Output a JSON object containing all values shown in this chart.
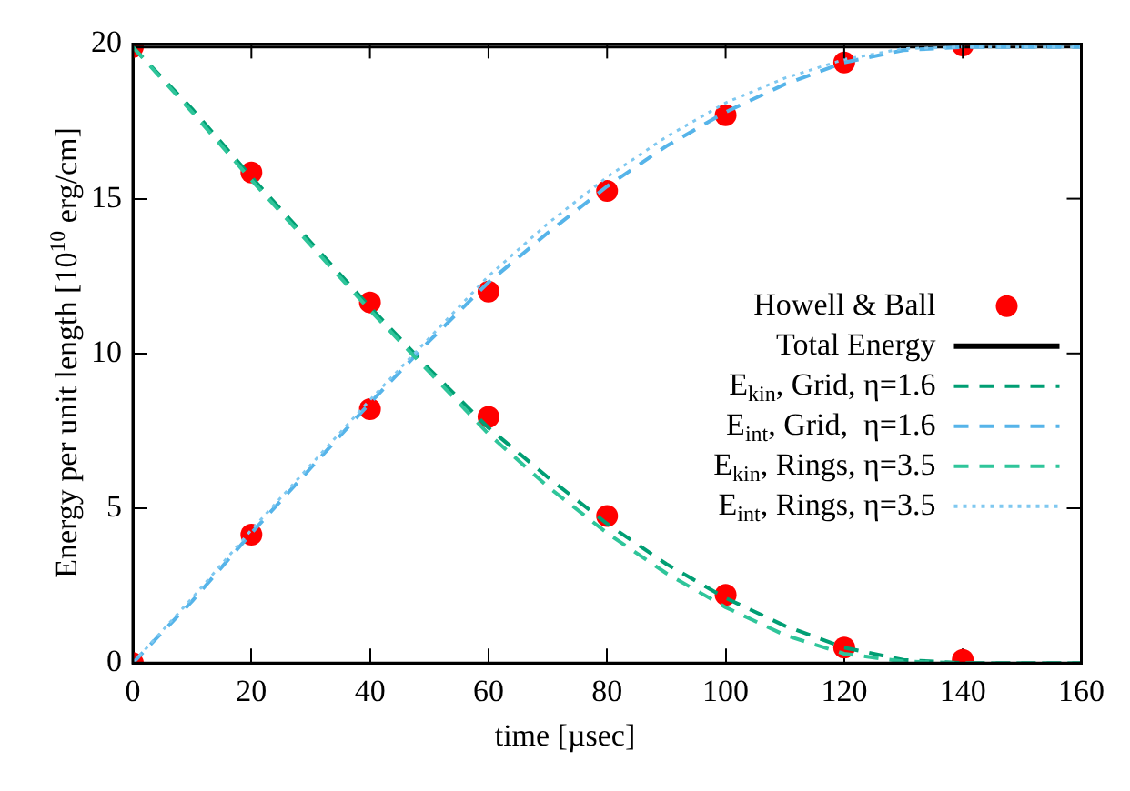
{
  "chart_data": {
    "type": "line",
    "xlabel": "time [µsec]",
    "ylabel": "Energy per unit length [10$^{10}$ erg/cm]",
    "xlim": [
      0,
      160
    ],
    "xticks": [
      0,
      20,
      40,
      60,
      80,
      100,
      120,
      140,
      160
    ],
    "ylim": [
      0,
      20
    ],
    "yticks": [
      0,
      5,
      10,
      15,
      20
    ],
    "grid": false,
    "legend": "right",
    "series": [
      {
        "name": "Howell & Ball",
        "type": "scatter",
        "marker": "circle",
        "color": "#ff0000",
        "x": [
          0,
          0,
          20,
          20,
          40,
          40,
          60,
          60,
          80,
          80,
          100,
          100,
          120,
          120,
          140,
          140
        ],
        "values": [
          19.9,
          0,
          15.85,
          4.15,
          11.65,
          8.2,
          12.0,
          7.95,
          15.25,
          4.75,
          17.7,
          2.2,
          19.4,
          0.5,
          19.95,
          0.1
        ]
      },
      {
        "name": "Total Energy",
        "color": "#000000",
        "line_style": "solid",
        "x": [
          0,
          160
        ],
        "values": [
          19.9,
          19.9
        ]
      },
      {
        "name": "E$_{kin}$, Grid, η=1.6",
        "color": "#009e73",
        "line_style": "dashed",
        "x": [
          0,
          10,
          20,
          30,
          40,
          50,
          60,
          70,
          80,
          90,
          100,
          110,
          120,
          130,
          140,
          150,
          160
        ],
        "values": [
          19.9,
          17.9,
          15.7,
          13.6,
          11.5,
          9.5,
          7.6,
          6.0,
          4.5,
          3.2,
          2.1,
          1.2,
          0.5,
          0.1,
          0,
          0,
          0
        ]
      },
      {
        "name": "E$_{int}$, Grid,  η=1.6",
        "color": "#56b4e9",
        "line_style": "dashed",
        "x": [
          0,
          10,
          20,
          30,
          40,
          50,
          60,
          70,
          80,
          90,
          100,
          110,
          120,
          130,
          140,
          150,
          160
        ],
        "values": [
          0,
          2.0,
          4.2,
          6.3,
          8.4,
          10.4,
          12.3,
          13.9,
          15.4,
          16.7,
          17.8,
          18.7,
          19.4,
          19.8,
          19.9,
          19.9,
          19.9
        ]
      },
      {
        "name": "E$_{kin}$, Rings, η=3.5",
        "color": "#2fc59a",
        "line_style": "dashed",
        "x": [
          0,
          10,
          20,
          30,
          40,
          50,
          60,
          70,
          80,
          90,
          100,
          110,
          120,
          130,
          140,
          150,
          160
        ],
        "values": [
          19.9,
          17.8,
          15.6,
          13.5,
          11.4,
          9.4,
          7.4,
          5.7,
          4.2,
          2.9,
          1.8,
          0.9,
          0.3,
          0.05,
          0,
          0,
          0
        ]
      },
      {
        "name": "E$_{int}$, Rings, η=3.5",
        "color": "#7fc8f0",
        "line_style": "dotted",
        "x": [
          0,
          10,
          20,
          30,
          40,
          50,
          60,
          70,
          80,
          90,
          100,
          110,
          120,
          130,
          140,
          150,
          160
        ],
        "values": [
          0,
          2.1,
          4.3,
          6.4,
          8.5,
          10.5,
          12.5,
          14.2,
          15.7,
          17.0,
          18.1,
          18.9,
          19.5,
          19.85,
          19.9,
          19.9,
          19.9
        ]
      }
    ]
  }
}
